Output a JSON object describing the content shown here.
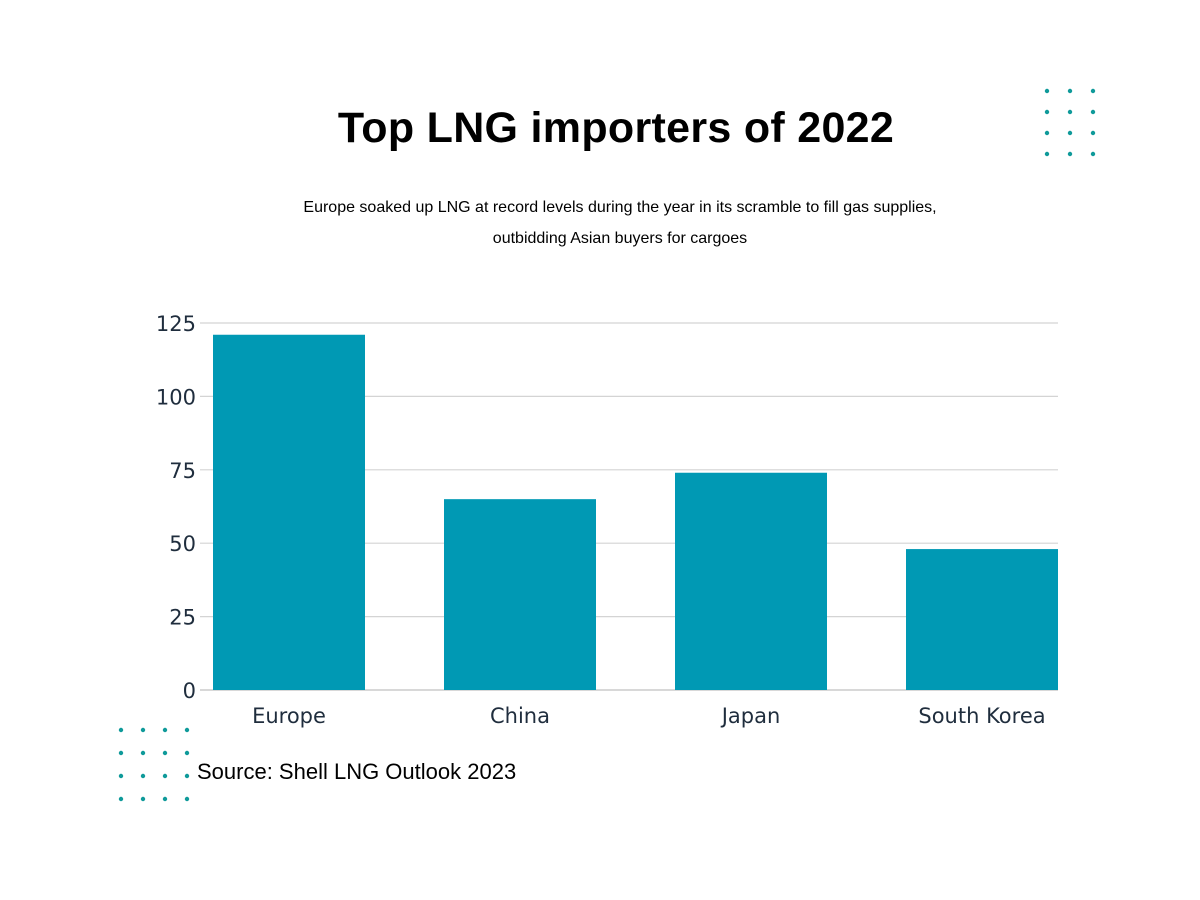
{
  "header": {
    "title": "Top LNG importers of 2022",
    "subtitle": "Europe soaked up LNG at record levels during the year in its scramble to fill gas supplies, outbidding Asian buyers for cargoes"
  },
  "footer": {
    "source": "Source: Shell LNG Outlook 2023"
  },
  "colors": {
    "bar": "#0099b4",
    "grid": "#d4d4d4",
    "dots": "#0f9a9a"
  },
  "chart_data": {
    "type": "bar",
    "title": "Top LNG importers of 2022",
    "subtitle": "Europe soaked up LNG at record levels during the year in its scramble to fill gas supplies, outbidding Asian buyers for cargoes",
    "categories": [
      "Europe",
      "China",
      "Japan",
      "South Korea"
    ],
    "values": [
      121,
      65,
      74,
      48
    ],
    "xlabel": "",
    "ylabel": "",
    "ylim": [
      0,
      125
    ],
    "yticks": [
      0,
      25,
      50,
      75,
      100,
      125
    ],
    "ytick_labels": [
      "0",
      "25",
      "50",
      "75",
      "100",
      "125"
    ],
    "grid": true,
    "legend": "none"
  }
}
